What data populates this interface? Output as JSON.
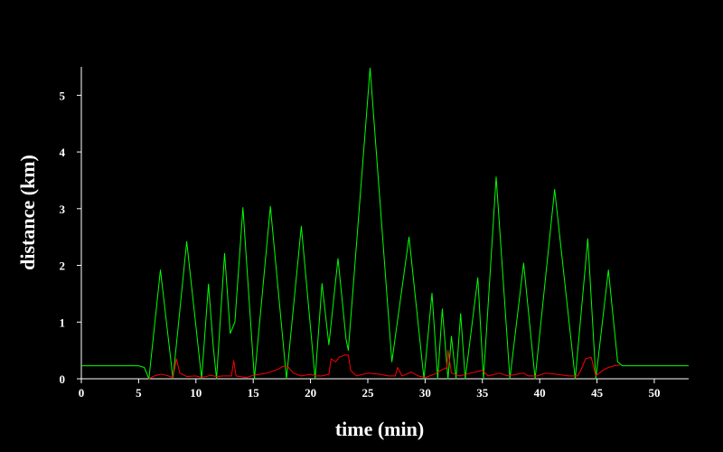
{
  "chart_data": {
    "type": "line",
    "xlabel": "time (min)",
    "ylabel": "distance (km)",
    "xlim": [
      0,
      53
    ],
    "ylim": [
      0,
      5.5
    ],
    "x_ticks": [
      0,
      5,
      10,
      15,
      20,
      25,
      30,
      35,
      40,
      45,
      50
    ],
    "y_ticks": [
      0,
      1,
      2,
      3,
      4,
      5
    ],
    "x_tick_labels": [
      "0",
      "5",
      "10",
      "15",
      "20",
      "25",
      "30",
      "35",
      "40",
      "45",
      "50"
    ],
    "y_tick_labels": [
      "0",
      "1",
      "2",
      "3",
      "4",
      "5"
    ],
    "grid": false,
    "colors": {
      "background": "#000000",
      "axis": "#ffffff",
      "text": "#ffffff"
    },
    "series": [
      {
        "color": "#00ff00",
        "points": [
          [
            0,
            0.23
          ],
          [
            5.0,
            0.23
          ],
          [
            5.5,
            0.2
          ],
          [
            5.9,
            0.0
          ],
          [
            6.9,
            1.92
          ],
          [
            8.0,
            0.0
          ],
          [
            9.2,
            2.42
          ],
          [
            10.5,
            0.0
          ],
          [
            11.1,
            1.67
          ],
          [
            11.5,
            0.6
          ],
          [
            11.8,
            0.0
          ],
          [
            12.5,
            2.21
          ],
          [
            13.0,
            0.8
          ],
          [
            13.4,
            1.0
          ],
          [
            14.1,
            3.02
          ],
          [
            15.1,
            0.0
          ],
          [
            16.5,
            3.04
          ],
          [
            17.9,
            0.0
          ],
          [
            19.2,
            2.69
          ],
          [
            20.4,
            0.0
          ],
          [
            21.0,
            1.68
          ],
          [
            21.6,
            0.6
          ],
          [
            22.4,
            2.12
          ],
          [
            23.1,
            0.7
          ],
          [
            23.3,
            0.5
          ],
          [
            25.2,
            5.48
          ],
          [
            27.1,
            0.3
          ],
          [
            28.6,
            2.5
          ],
          [
            29.9,
            0.0
          ],
          [
            30.6,
            1.51
          ],
          [
            31.1,
            0.0
          ],
          [
            31.5,
            1.23
          ],
          [
            32.0,
            0.0
          ],
          [
            32.3,
            0.75
          ],
          [
            32.7,
            0.0
          ],
          [
            33.1,
            1.15
          ],
          [
            33.5,
            0.0
          ],
          [
            34.6,
            1.78
          ],
          [
            35.1,
            0.0
          ],
          [
            36.2,
            3.56
          ],
          [
            37.4,
            0.0
          ],
          [
            38.6,
            2.04
          ],
          [
            39.6,
            0.0
          ],
          [
            41.3,
            3.34
          ],
          [
            43.1,
            0.0
          ],
          [
            44.2,
            2.47
          ],
          [
            44.9,
            0.0
          ],
          [
            46.0,
            1.92
          ],
          [
            46.8,
            0.3
          ],
          [
            47.2,
            0.23
          ],
          [
            48.0,
            0.23
          ],
          [
            53,
            0.23
          ]
        ]
      },
      {
        "color": "#ff0000",
        "points": [
          [
            5.9,
            0.0
          ],
          [
            6.5,
            0.06
          ],
          [
            7.0,
            0.08
          ],
          [
            7.6,
            0.05
          ],
          [
            8.0,
            0.02
          ],
          [
            8.3,
            0.35
          ],
          [
            8.6,
            0.1
          ],
          [
            9.2,
            0.04
          ],
          [
            10.0,
            0.05
          ],
          [
            10.5,
            0.02
          ],
          [
            11.3,
            0.06
          ],
          [
            11.8,
            0.04
          ],
          [
            12.4,
            0.05
          ],
          [
            13.1,
            0.05
          ],
          [
            13.3,
            0.32
          ],
          [
            13.5,
            0.05
          ],
          [
            14.4,
            0.02
          ],
          [
            15.0,
            0.06
          ],
          [
            16.2,
            0.1
          ],
          [
            17.2,
            0.17
          ],
          [
            17.6,
            0.22
          ],
          [
            18.0,
            0.22
          ],
          [
            18.5,
            0.1
          ],
          [
            19.2,
            0.05
          ],
          [
            20.0,
            0.08
          ],
          [
            20.5,
            0.05
          ],
          [
            21.0,
            0.05
          ],
          [
            21.6,
            0.08
          ],
          [
            21.8,
            0.35
          ],
          [
            22.2,
            0.3
          ],
          [
            22.5,
            0.38
          ],
          [
            23.0,
            0.42
          ],
          [
            23.3,
            0.42
          ],
          [
            23.5,
            0.15
          ],
          [
            24.0,
            0.05
          ],
          [
            25.0,
            0.1
          ],
          [
            26.0,
            0.08
          ],
          [
            26.8,
            0.05
          ],
          [
            27.4,
            0.05
          ],
          [
            27.6,
            0.2
          ],
          [
            28.0,
            0.05
          ],
          [
            28.8,
            0.12
          ],
          [
            29.4,
            0.05
          ],
          [
            30.0,
            0.02
          ],
          [
            30.8,
            0.08
          ],
          [
            31.4,
            0.15
          ],
          [
            31.9,
            0.2
          ],
          [
            32.0,
            0.5
          ],
          [
            32.3,
            0.1
          ],
          [
            33.0,
            0.05
          ],
          [
            34.0,
            0.1
          ],
          [
            35.0,
            0.15
          ],
          [
            35.5,
            0.05
          ],
          [
            36.5,
            0.1
          ],
          [
            37.2,
            0.05
          ],
          [
            38.0,
            0.08
          ],
          [
            38.6,
            0.1
          ],
          [
            39.0,
            0.05
          ],
          [
            39.8,
            0.05
          ],
          [
            40.5,
            0.1
          ],
          [
            41.5,
            0.08
          ],
          [
            42.5,
            0.05
          ],
          [
            43.3,
            0.05
          ],
          [
            43.6,
            0.15
          ],
          [
            44.0,
            0.35
          ],
          [
            44.5,
            0.38
          ],
          [
            44.9,
            0.05
          ],
          [
            45.5,
            0.15
          ],
          [
            46.0,
            0.2
          ],
          [
            46.5,
            0.23
          ],
          [
            47.0,
            0.24
          ]
        ]
      }
    ]
  }
}
